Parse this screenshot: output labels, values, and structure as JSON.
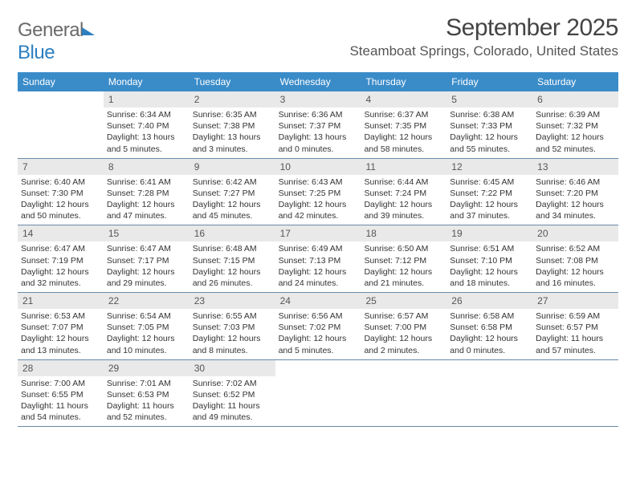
{
  "logo": {
    "text_general": "General",
    "text_blue": "Blue"
  },
  "title": "September 2025",
  "location": "Steamboat Springs, Colorado, United States",
  "colors": {
    "header_bg": "#3a8cc9",
    "daynum_bg": "#e9e9e9",
    "week_border": "#6a8aa8",
    "text": "#333333",
    "logo_gray": "#6a6a6a",
    "logo_blue": "#2d7fc0"
  },
  "days_of_week": [
    "Sunday",
    "Monday",
    "Tuesday",
    "Wednesday",
    "Thursday",
    "Friday",
    "Saturday"
  ],
  "weeks": [
    [
      {
        "blank": true
      },
      {
        "num": "1",
        "sunrise": "Sunrise: 6:34 AM",
        "sunset": "Sunset: 7:40 PM",
        "daylight": "Daylight: 13 hours and 5 minutes."
      },
      {
        "num": "2",
        "sunrise": "Sunrise: 6:35 AM",
        "sunset": "Sunset: 7:38 PM",
        "daylight": "Daylight: 13 hours and 3 minutes."
      },
      {
        "num": "3",
        "sunrise": "Sunrise: 6:36 AM",
        "sunset": "Sunset: 7:37 PM",
        "daylight": "Daylight: 13 hours and 0 minutes."
      },
      {
        "num": "4",
        "sunrise": "Sunrise: 6:37 AM",
        "sunset": "Sunset: 7:35 PM",
        "daylight": "Daylight: 12 hours and 58 minutes."
      },
      {
        "num": "5",
        "sunrise": "Sunrise: 6:38 AM",
        "sunset": "Sunset: 7:33 PM",
        "daylight": "Daylight: 12 hours and 55 minutes."
      },
      {
        "num": "6",
        "sunrise": "Sunrise: 6:39 AM",
        "sunset": "Sunset: 7:32 PM",
        "daylight": "Daylight: 12 hours and 52 minutes."
      }
    ],
    [
      {
        "num": "7",
        "sunrise": "Sunrise: 6:40 AM",
        "sunset": "Sunset: 7:30 PM",
        "daylight": "Daylight: 12 hours and 50 minutes."
      },
      {
        "num": "8",
        "sunrise": "Sunrise: 6:41 AM",
        "sunset": "Sunset: 7:28 PM",
        "daylight": "Daylight: 12 hours and 47 minutes."
      },
      {
        "num": "9",
        "sunrise": "Sunrise: 6:42 AM",
        "sunset": "Sunset: 7:27 PM",
        "daylight": "Daylight: 12 hours and 45 minutes."
      },
      {
        "num": "10",
        "sunrise": "Sunrise: 6:43 AM",
        "sunset": "Sunset: 7:25 PM",
        "daylight": "Daylight: 12 hours and 42 minutes."
      },
      {
        "num": "11",
        "sunrise": "Sunrise: 6:44 AM",
        "sunset": "Sunset: 7:24 PM",
        "daylight": "Daylight: 12 hours and 39 minutes."
      },
      {
        "num": "12",
        "sunrise": "Sunrise: 6:45 AM",
        "sunset": "Sunset: 7:22 PM",
        "daylight": "Daylight: 12 hours and 37 minutes."
      },
      {
        "num": "13",
        "sunrise": "Sunrise: 6:46 AM",
        "sunset": "Sunset: 7:20 PM",
        "daylight": "Daylight: 12 hours and 34 minutes."
      }
    ],
    [
      {
        "num": "14",
        "sunrise": "Sunrise: 6:47 AM",
        "sunset": "Sunset: 7:19 PM",
        "daylight": "Daylight: 12 hours and 32 minutes."
      },
      {
        "num": "15",
        "sunrise": "Sunrise: 6:47 AM",
        "sunset": "Sunset: 7:17 PM",
        "daylight": "Daylight: 12 hours and 29 minutes."
      },
      {
        "num": "16",
        "sunrise": "Sunrise: 6:48 AM",
        "sunset": "Sunset: 7:15 PM",
        "daylight": "Daylight: 12 hours and 26 minutes."
      },
      {
        "num": "17",
        "sunrise": "Sunrise: 6:49 AM",
        "sunset": "Sunset: 7:13 PM",
        "daylight": "Daylight: 12 hours and 24 minutes."
      },
      {
        "num": "18",
        "sunrise": "Sunrise: 6:50 AM",
        "sunset": "Sunset: 7:12 PM",
        "daylight": "Daylight: 12 hours and 21 minutes."
      },
      {
        "num": "19",
        "sunrise": "Sunrise: 6:51 AM",
        "sunset": "Sunset: 7:10 PM",
        "daylight": "Daylight: 12 hours and 18 minutes."
      },
      {
        "num": "20",
        "sunrise": "Sunrise: 6:52 AM",
        "sunset": "Sunset: 7:08 PM",
        "daylight": "Daylight: 12 hours and 16 minutes."
      }
    ],
    [
      {
        "num": "21",
        "sunrise": "Sunrise: 6:53 AM",
        "sunset": "Sunset: 7:07 PM",
        "daylight": "Daylight: 12 hours and 13 minutes."
      },
      {
        "num": "22",
        "sunrise": "Sunrise: 6:54 AM",
        "sunset": "Sunset: 7:05 PM",
        "daylight": "Daylight: 12 hours and 10 minutes."
      },
      {
        "num": "23",
        "sunrise": "Sunrise: 6:55 AM",
        "sunset": "Sunset: 7:03 PM",
        "daylight": "Daylight: 12 hours and 8 minutes."
      },
      {
        "num": "24",
        "sunrise": "Sunrise: 6:56 AM",
        "sunset": "Sunset: 7:02 PM",
        "daylight": "Daylight: 12 hours and 5 minutes."
      },
      {
        "num": "25",
        "sunrise": "Sunrise: 6:57 AM",
        "sunset": "Sunset: 7:00 PM",
        "daylight": "Daylight: 12 hours and 2 minutes."
      },
      {
        "num": "26",
        "sunrise": "Sunrise: 6:58 AM",
        "sunset": "Sunset: 6:58 PM",
        "daylight": "Daylight: 12 hours and 0 minutes."
      },
      {
        "num": "27",
        "sunrise": "Sunrise: 6:59 AM",
        "sunset": "Sunset: 6:57 PM",
        "daylight": "Daylight: 11 hours and 57 minutes."
      }
    ],
    [
      {
        "num": "28",
        "sunrise": "Sunrise: 7:00 AM",
        "sunset": "Sunset: 6:55 PM",
        "daylight": "Daylight: 11 hours and 54 minutes."
      },
      {
        "num": "29",
        "sunrise": "Sunrise: 7:01 AM",
        "sunset": "Sunset: 6:53 PM",
        "daylight": "Daylight: 11 hours and 52 minutes."
      },
      {
        "num": "30",
        "sunrise": "Sunrise: 7:02 AM",
        "sunset": "Sunset: 6:52 PM",
        "daylight": "Daylight: 11 hours and 49 minutes."
      },
      {
        "blank": true
      },
      {
        "blank": true
      },
      {
        "blank": true
      },
      {
        "blank": true
      }
    ]
  ]
}
